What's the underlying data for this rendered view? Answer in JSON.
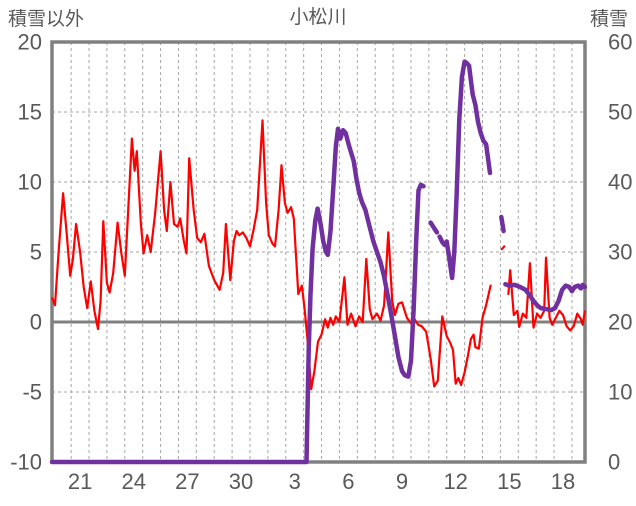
{
  "chart_data": {
    "type": "line",
    "title": "小松川",
    "legend": "none",
    "grid": true,
    "colors": {
      "non_snow": "#FF0000",
      "snow": "#7030A0",
      "grid": "#A6A6A6",
      "frame": "#808080",
      "zero_line": "#808080",
      "text": "#595959",
      "background": "#FFFFFF"
    },
    "left_axis": {
      "title": "積雪以外",
      "ticks": [
        "20",
        "15",
        "10",
        "5",
        "0",
        "-5",
        "-10"
      ],
      "tick_values": [
        20,
        15,
        10,
        5,
        0,
        -5,
        -10
      ],
      "ylim": [
        -10,
        20
      ]
    },
    "right_axis": {
      "title": "積雪",
      "ticks": [
        "60",
        "50",
        "40",
        "30",
        "20",
        "10",
        "0"
      ],
      "tick_values": [
        60,
        50,
        40,
        30,
        20,
        10,
        0
      ],
      "ylim": [
        0,
        60
      ]
    },
    "x_axis": {
      "tick_labels": [
        "21",
        "24",
        "27",
        "30",
        "3",
        "6",
        "9",
        "12",
        "15",
        "18"
      ],
      "tick_positions": [
        21,
        24,
        27,
        30,
        33,
        36,
        39,
        42,
        45,
        48
      ],
      "domain": [
        19.43,
        49.23
      ],
      "first_gridline": 20.5,
      "last_gridline": 48.5,
      "minor_gridline_step": 1
    },
    "series": [
      {
        "name": "積雪以外",
        "axis": "left",
        "color_key": "non_snow",
        "stroke_width": 2.2,
        "points": [
          [
            19.45,
            1.7
          ],
          [
            19.6,
            1.2
          ],
          [
            19.8,
            5.0
          ],
          [
            20.05,
            9.2
          ],
          [
            20.25,
            6.3
          ],
          [
            20.45,
            3.3
          ],
          [
            20.6,
            4.5
          ],
          [
            20.78,
            7.0
          ],
          [
            21.0,
            5.0
          ],
          [
            21.2,
            2.5
          ],
          [
            21.4,
            1.0
          ],
          [
            21.6,
            2.9
          ],
          [
            21.8,
            0.8
          ],
          [
            22.0,
            -0.5
          ],
          [
            22.15,
            1.5
          ],
          [
            22.3,
            7.2
          ],
          [
            22.5,
            2.8
          ],
          [
            22.65,
            2.1
          ],
          [
            22.85,
            3.5
          ],
          [
            23.1,
            7.1
          ],
          [
            23.3,
            5.0
          ],
          [
            23.5,
            3.3
          ],
          [
            23.9,
            13.1
          ],
          [
            24.05,
            10.8
          ],
          [
            24.17,
            12.2
          ],
          [
            24.4,
            7.0
          ],
          [
            24.55,
            4.9
          ],
          [
            24.75,
            6.2
          ],
          [
            24.95,
            5.0
          ],
          [
            25.2,
            7.8
          ],
          [
            25.5,
            12.2
          ],
          [
            25.7,
            8.0
          ],
          [
            25.85,
            6.5
          ],
          [
            26.05,
            10.0
          ],
          [
            26.25,
            7.0
          ],
          [
            26.45,
            6.8
          ],
          [
            26.6,
            7.4
          ],
          [
            26.8,
            5.8
          ],
          [
            26.95,
            4.9
          ],
          [
            27.1,
            11.7
          ],
          [
            27.35,
            8.0
          ],
          [
            27.55,
            6.0
          ],
          [
            27.75,
            5.7
          ],
          [
            27.95,
            6.3
          ],
          [
            28.2,
            4.0
          ],
          [
            28.5,
            3.0
          ],
          [
            28.8,
            2.3
          ],
          [
            29.0,
            3.5
          ],
          [
            29.15,
            7.0
          ],
          [
            29.4,
            3.0
          ],
          [
            29.6,
            5.8
          ],
          [
            29.75,
            6.5
          ],
          [
            29.9,
            6.2
          ],
          [
            30.1,
            6.4
          ],
          [
            30.3,
            6.0
          ],
          [
            30.5,
            5.4
          ],
          [
            30.7,
            6.6
          ],
          [
            30.9,
            8.0
          ],
          [
            31.2,
            14.4
          ],
          [
            31.4,
            8.5
          ],
          [
            31.55,
            6.2
          ],
          [
            31.75,
            5.6
          ],
          [
            31.9,
            5.4
          ],
          [
            32.1,
            8.0
          ],
          [
            32.26,
            11.2
          ],
          [
            32.45,
            8.5
          ],
          [
            32.6,
            7.8
          ],
          [
            32.8,
            8.2
          ],
          [
            32.95,
            7.4
          ],
          [
            33.2,
            2.0
          ],
          [
            33.4,
            2.6
          ],
          [
            33.55,
            1.0
          ],
          [
            33.7,
            -1.0
          ],
          [
            33.92,
            -4.8
          ],
          [
            34.1,
            -3.5
          ],
          [
            34.3,
            -1.4
          ],
          [
            34.5,
            -0.9
          ],
          [
            34.7,
            0.2
          ],
          [
            34.85,
            -0.4
          ],
          [
            35.0,
            0.3
          ],
          [
            35.15,
            -0.2
          ],
          [
            35.3,
            0.4
          ],
          [
            35.5,
            0.0
          ],
          [
            35.78,
            3.2
          ],
          [
            35.95,
            -0.2
          ],
          [
            36.15,
            0.6
          ],
          [
            36.4,
            -0.3
          ],
          [
            36.6,
            0.4
          ],
          [
            36.8,
            0.0
          ],
          [
            37.0,
            4.5
          ],
          [
            37.2,
            0.9
          ],
          [
            37.35,
            0.2
          ],
          [
            37.6,
            0.6
          ],
          [
            37.8,
            0.1
          ],
          [
            38.0,
            1.2
          ],
          [
            38.23,
            6.4
          ],
          [
            38.45,
            1.5
          ],
          [
            38.6,
            0.5
          ],
          [
            38.8,
            1.3
          ],
          [
            39.0,
            1.4
          ],
          [
            39.27,
            0.3
          ],
          [
            39.5,
            -0.1
          ],
          [
            39.7,
            0.2
          ],
          [
            39.9,
            -0.2
          ],
          [
            40.1,
            -0.3
          ],
          [
            40.35,
            -0.7
          ],
          [
            40.6,
            -2.6
          ],
          [
            40.8,
            -4.6
          ],
          [
            41.0,
            -4.2
          ],
          [
            41.25,
            0.4
          ],
          [
            41.5,
            -1.0
          ],
          [
            41.7,
            -1.5
          ],
          [
            41.85,
            -2.0
          ],
          [
            42.0,
            -4.4
          ],
          [
            42.15,
            -4.0
          ],
          [
            42.3,
            -4.5
          ],
          [
            42.5,
            -3.6
          ],
          [
            42.7,
            -2.3
          ],
          [
            42.85,
            -1.2
          ],
          [
            43.0,
            -0.9
          ],
          [
            43.1,
            -1.8
          ],
          [
            43.3,
            -1.9
          ],
          [
            43.5,
            0.3
          ],
          [
            43.7,
            1.2
          ],
          [
            43.95,
            2.6
          ],
          null,
          [
            44.58,
            5.2
          ],
          [
            44.72,
            5.4
          ],
          null,
          [
            44.95,
            2.0
          ],
          [
            45.05,
            3.7
          ],
          [
            45.25,
            0.5
          ],
          [
            45.45,
            0.8
          ],
          [
            45.55,
            -0.35
          ],
          [
            45.75,
            0.6
          ],
          [
            45.95,
            0.3
          ],
          [
            46.15,
            4.2
          ],
          [
            46.35,
            -0.4
          ],
          [
            46.55,
            0.6
          ],
          [
            46.75,
            0.3
          ],
          [
            46.95,
            0.8
          ],
          [
            47.05,
            4.6
          ],
          [
            47.25,
            0.3
          ],
          [
            47.4,
            -0.2
          ],
          [
            47.6,
            0.3
          ],
          [
            47.8,
            0.8
          ],
          [
            48.0,
            0.5
          ],
          [
            48.2,
            -0.3
          ],
          [
            48.4,
            -0.6
          ],
          [
            48.6,
            -0.3
          ],
          [
            48.8,
            0.6
          ],
          [
            49.0,
            0.2
          ],
          [
            49.1,
            -0.2
          ],
          [
            49.22,
            0.75
          ]
        ]
      },
      {
        "name": "積雪",
        "axis": "right",
        "color_key": "snow",
        "stroke_width": 4.5,
        "points": [
          [
            19.43,
            0
          ],
          [
            33.66,
            0
          ],
          [
            33.72,
            8
          ],
          [
            33.78,
            16
          ],
          [
            33.88,
            24
          ],
          [
            34.0,
            30.5
          ],
          [
            34.15,
            34.5
          ],
          [
            34.28,
            36.2
          ],
          [
            34.45,
            34.0
          ],
          [
            34.6,
            31.5
          ],
          [
            34.75,
            30.0
          ],
          [
            34.85,
            29.6
          ],
          [
            35.0,
            33.0
          ],
          [
            35.15,
            39.0
          ],
          [
            35.3,
            45.0
          ],
          [
            35.42,
            47.6
          ],
          [
            35.55,
            46.2
          ],
          [
            35.7,
            47.4
          ],
          [
            35.85,
            47.0
          ],
          [
            36.0,
            45.5
          ],
          [
            36.15,
            44.2
          ],
          [
            36.3,
            43.0
          ],
          [
            36.45,
            40.5
          ],
          [
            36.6,
            38.5
          ],
          [
            36.75,
            37.2
          ],
          [
            36.95,
            36.0
          ],
          [
            37.15,
            34.0
          ],
          [
            37.4,
            31.5
          ],
          [
            37.6,
            30.0
          ],
          [
            37.8,
            28.5
          ],
          [
            38.0,
            26.5
          ],
          [
            38.2,
            23.8
          ],
          [
            38.4,
            21.0
          ],
          [
            38.6,
            18.0
          ],
          [
            38.8,
            15.0
          ],
          [
            39.0,
            13.0
          ],
          [
            39.15,
            12.4
          ],
          [
            39.35,
            12.2
          ],
          [
            39.5,
            14.5
          ],
          [
            39.65,
            22.0
          ],
          [
            39.8,
            32.0
          ],
          [
            39.92,
            38.8
          ],
          [
            40.05,
            39.6
          ],
          [
            40.2,
            39.4
          ],
          null,
          [
            40.6,
            34.2
          ],
          [
            40.75,
            33.6
          ],
          [
            40.95,
            32.8
          ],
          null,
          [
            41.1,
            32.2
          ],
          [
            41.25,
            31.4
          ],
          [
            41.38,
            31.0
          ],
          null,
          [
            41.5,
            31.5
          ],
          [
            41.65,
            29.0
          ],
          [
            41.8,
            26.3
          ],
          [
            41.92,
            30.0
          ],
          [
            42.05,
            38.0
          ],
          [
            42.2,
            49.0
          ],
          [
            42.35,
            55.0
          ],
          [
            42.5,
            57.2
          ],
          [
            42.62,
            57.0
          ],
          [
            42.75,
            56.6
          ],
          [
            42.85,
            54.5
          ],
          [
            42.95,
            52.5
          ],
          [
            43.1,
            51.0
          ],
          [
            43.25,
            48.6
          ],
          [
            43.4,
            47.0
          ],
          [
            43.55,
            45.9
          ],
          [
            43.7,
            45.4
          ],
          [
            43.8,
            43.5
          ],
          [
            43.92,
            41.3
          ],
          null,
          [
            44.55,
            35.0
          ],
          [
            44.68,
            33.0
          ],
          null,
          [
            44.78,
            25.4
          ],
          [
            45.0,
            25.2
          ],
          [
            45.3,
            25.3
          ],
          [
            45.6,
            25.0
          ],
          [
            45.9,
            24.6
          ],
          [
            46.15,
            23.8
          ],
          [
            46.35,
            23.0
          ],
          [
            46.55,
            22.4
          ],
          [
            46.75,
            22.0
          ],
          [
            46.95,
            21.9
          ],
          [
            47.15,
            21.8
          ],
          [
            47.35,
            21.7
          ],
          [
            47.55,
            22.0
          ],
          [
            47.75,
            23.0
          ],
          [
            47.95,
            24.6
          ],
          [
            48.15,
            25.2
          ],
          [
            48.35,
            25.0
          ],
          [
            48.5,
            24.4
          ],
          [
            48.65,
            25.0
          ],
          [
            48.85,
            25.2
          ],
          [
            49.0,
            24.8
          ],
          [
            49.1,
            25.3
          ],
          [
            49.22,
            25.0
          ]
        ]
      }
    ]
  }
}
